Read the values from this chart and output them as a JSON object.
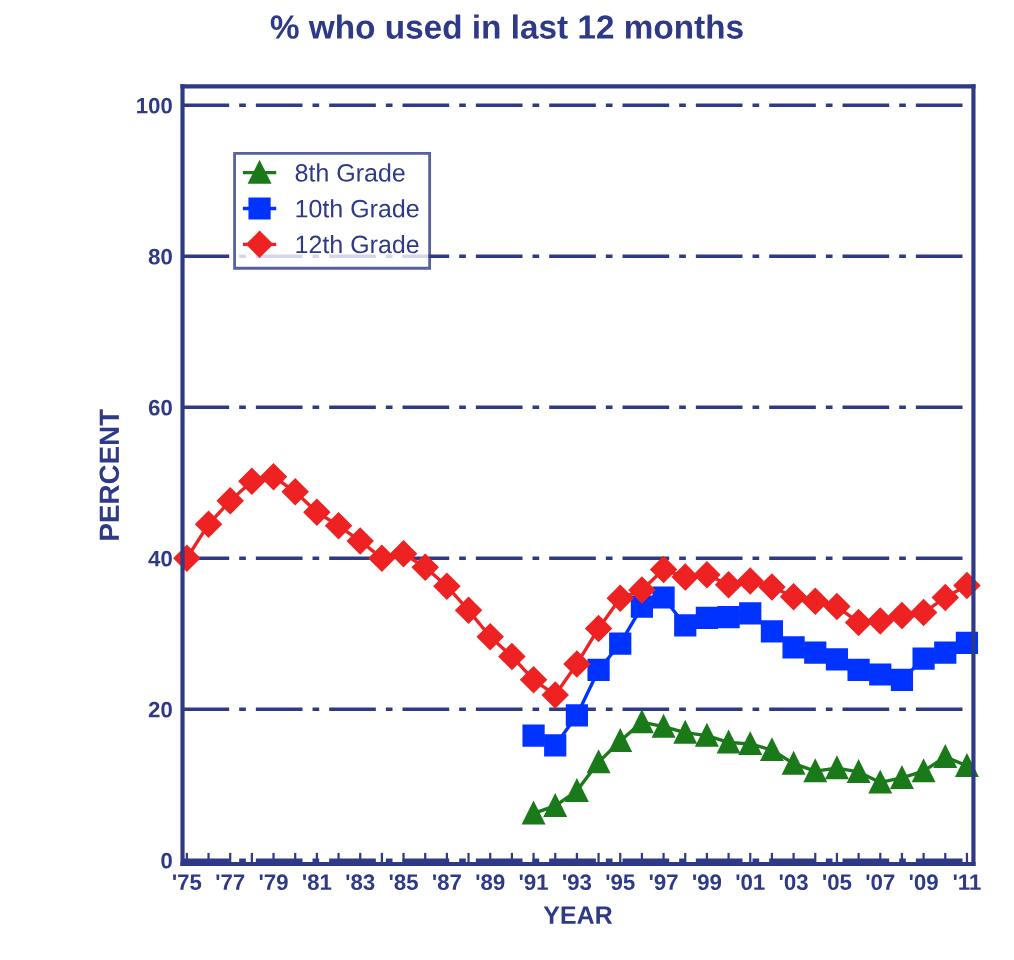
{
  "chart_data": {
    "type": "line",
    "title": "% who used in last 12 months",
    "xlabel": "YEAR",
    "ylabel": "PERCENT",
    "x": [
      1975,
      1976,
      1977,
      1978,
      1979,
      1980,
      1981,
      1982,
      1983,
      1984,
      1985,
      1986,
      1987,
      1988,
      1989,
      1990,
      1991,
      1992,
      1993,
      1994,
      1995,
      1996,
      1997,
      1998,
      1999,
      2000,
      2001,
      2002,
      2003,
      2004,
      2005,
      2006,
      2007,
      2008,
      2009,
      2010,
      2011
    ],
    "series": [
      {
        "name": "8th Grade",
        "color": "#1a7a1a",
        "marker": "triangle",
        "values": [
          null,
          null,
          null,
          null,
          null,
          null,
          null,
          null,
          null,
          null,
          null,
          null,
          null,
          null,
          null,
          null,
          6.2,
          7.2,
          9.2,
          13.0,
          15.8,
          18.3,
          17.7,
          16.9,
          16.5,
          15.6,
          15.4,
          14.6,
          12.8,
          11.8,
          12.2,
          11.7,
          10.3,
          10.9,
          11.8,
          13.7,
          12.5
        ]
      },
      {
        "name": "10th Grade",
        "color": "#0033ff",
        "marker": "square",
        "values": [
          null,
          null,
          null,
          null,
          null,
          null,
          null,
          null,
          null,
          null,
          null,
          null,
          null,
          null,
          null,
          null,
          16.5,
          15.2,
          19.2,
          25.2,
          28.7,
          33.6,
          34.8,
          31.1,
          32.1,
          32.2,
          32.7,
          30.3,
          28.2,
          27.5,
          26.6,
          25.2,
          24.6,
          23.9,
          26.7,
          27.5,
          28.8
        ]
      },
      {
        "name": "12th Grade",
        "color": "#ee2222",
        "marker": "diamond",
        "values": [
          40.0,
          44.5,
          47.6,
          50.2,
          50.8,
          48.8,
          46.1,
          44.3,
          42.3,
          40.0,
          40.6,
          38.8,
          36.3,
          33.1,
          29.6,
          27.0,
          23.9,
          21.9,
          26.0,
          30.7,
          34.7,
          35.8,
          38.5,
          37.5,
          37.8,
          36.5,
          37.0,
          36.2,
          34.9,
          34.3,
          33.6,
          31.5,
          31.7,
          32.4,
          32.8,
          34.8,
          36.4
        ]
      }
    ],
    "xlim": [
      1974.8,
      2011.3
    ],
    "ylim": [
      -0.5,
      102.5
    ],
    "xticks": [
      {
        "value": 1975,
        "label": "'75"
      },
      {
        "value": 1976,
        "label": null
      },
      {
        "value": 1977,
        "label": "'77"
      },
      {
        "value": 1978,
        "label": null
      },
      {
        "value": 1979,
        "label": "'79"
      },
      {
        "value": 1980,
        "label": null
      },
      {
        "value": 1981,
        "label": "'81"
      },
      {
        "value": 1982,
        "label": null
      },
      {
        "value": 1983,
        "label": "'83"
      },
      {
        "value": 1984,
        "label": null
      },
      {
        "value": 1985,
        "label": "'85"
      },
      {
        "value": 1986,
        "label": null
      },
      {
        "value": 1987,
        "label": "'87"
      },
      {
        "value": 1988,
        "label": null
      },
      {
        "value": 1989,
        "label": "'89"
      },
      {
        "value": 1990,
        "label": null
      },
      {
        "value": 1991,
        "label": "'91"
      },
      {
        "value": 1992,
        "label": null
      },
      {
        "value": 1993,
        "label": "'93"
      },
      {
        "value": 1994,
        "label": null
      },
      {
        "value": 1995,
        "label": "'95"
      },
      {
        "value": 1996,
        "label": null
      },
      {
        "value": 1997,
        "label": "'97"
      },
      {
        "value": 1998,
        "label": null
      },
      {
        "value": 1999,
        "label": "'99"
      },
      {
        "value": 2000,
        "label": null
      },
      {
        "value": 2001,
        "label": "'01"
      },
      {
        "value": 2002,
        "label": null
      },
      {
        "value": 2003,
        "label": "'03"
      },
      {
        "value": 2004,
        "label": null
      },
      {
        "value": 2005,
        "label": "'05"
      },
      {
        "value": 2006,
        "label": null
      },
      {
        "value": 2007,
        "label": "'07"
      },
      {
        "value": 2008,
        "label": null
      },
      {
        "value": 2009,
        "label": "'09"
      },
      {
        "value": 2010,
        "label": null
      },
      {
        "value": 2011,
        "label": "'11"
      }
    ],
    "yticks": [
      0,
      20,
      40,
      60,
      80,
      100
    ],
    "grid": "y",
    "legend": "top left",
    "line_style": "solid"
  }
}
